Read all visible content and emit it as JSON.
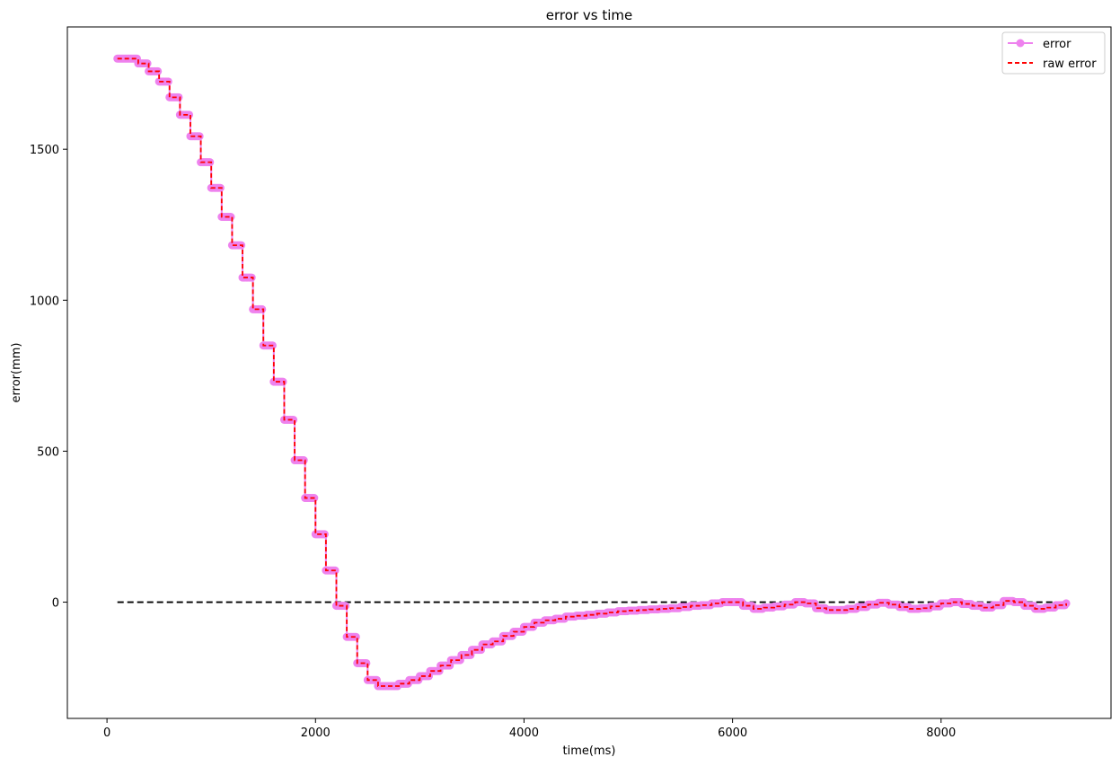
{
  "chart_data": {
    "type": "line",
    "title": "error vs time",
    "xlabel": "time(ms)",
    "ylabel": "error(mm)",
    "xlim": [
      -380,
      9630
    ],
    "ylim": [
      -385,
      1905
    ],
    "xticks": [
      0,
      2000,
      4000,
      6000,
      8000
    ],
    "yticks": [
      0,
      500,
      1000,
      1500
    ],
    "grid": false,
    "legend": "top-right",
    "reference_line": {
      "y": 0,
      "x_range": [
        100,
        9200
      ],
      "color": "#000000",
      "style": "dashed"
    },
    "series": [
      {
        "name": "error",
        "color": "#ee82ee",
        "style": "solid-step-with-markers",
        "points": [
          [
            100,
            1800
          ],
          [
            200,
            1800
          ],
          [
            300,
            1784
          ],
          [
            400,
            1758
          ],
          [
            500,
            1724
          ],
          [
            600,
            1672
          ],
          [
            700,
            1614
          ],
          [
            800,
            1543
          ],
          [
            900,
            1457
          ],
          [
            1000,
            1372
          ],
          [
            1100,
            1276
          ],
          [
            1200,
            1182
          ],
          [
            1300,
            1075
          ],
          [
            1400,
            970
          ],
          [
            1500,
            850
          ],
          [
            1600,
            730
          ],
          [
            1700,
            604
          ],
          [
            1800,
            470
          ],
          [
            1900,
            345
          ],
          [
            2000,
            225
          ],
          [
            2100,
            105
          ],
          [
            2200,
            -12
          ],
          [
            2300,
            -115
          ],
          [
            2400,
            -202
          ],
          [
            2500,
            -258
          ],
          [
            2600,
            -278
          ],
          [
            2700,
            -278
          ],
          [
            2800,
            -270
          ],
          [
            2900,
            -258
          ],
          [
            3000,
            -245
          ],
          [
            3100,
            -228
          ],
          [
            3200,
            -210
          ],
          [
            3300,
            -192
          ],
          [
            3400,
            -175
          ],
          [
            3500,
            -158
          ],
          [
            3600,
            -140
          ],
          [
            3700,
            -130
          ],
          [
            3800,
            -112
          ],
          [
            3900,
            -98
          ],
          [
            4000,
            -82
          ],
          [
            4100,
            -68
          ],
          [
            4200,
            -60
          ],
          [
            4300,
            -55
          ],
          [
            4400,
            -48
          ],
          [
            4500,
            -45
          ],
          [
            4600,
            -42
          ],
          [
            4700,
            -38
          ],
          [
            4800,
            -34
          ],
          [
            4900,
            -30
          ],
          [
            5000,
            -28
          ],
          [
            5100,
            -26
          ],
          [
            5200,
            -24
          ],
          [
            5300,
            -22
          ],
          [
            5400,
            -20
          ],
          [
            5500,
            -16
          ],
          [
            5600,
            -12
          ],
          [
            5700,
            -10
          ],
          [
            5800,
            -4
          ],
          [
            5900,
            0
          ],
          [
            6000,
            0
          ],
          [
            6100,
            -12
          ],
          [
            6200,
            -22
          ],
          [
            6300,
            -18
          ],
          [
            6400,
            -14
          ],
          [
            6500,
            -8
          ],
          [
            6600,
            0
          ],
          [
            6700,
            -4
          ],
          [
            6800,
            -20
          ],
          [
            6900,
            -26
          ],
          [
            7000,
            -26
          ],
          [
            7100,
            -22
          ],
          [
            7200,
            -16
          ],
          [
            7300,
            -8
          ],
          [
            7400,
            -2
          ],
          [
            7500,
            -8
          ],
          [
            7600,
            -16
          ],
          [
            7700,
            -22
          ],
          [
            7800,
            -20
          ],
          [
            7900,
            -14
          ],
          [
            8000,
            -4
          ],
          [
            8100,
            0
          ],
          [
            8200,
            -6
          ],
          [
            8300,
            -12
          ],
          [
            8400,
            -18
          ],
          [
            8500,
            -10
          ],
          [
            8600,
            4
          ],
          [
            8700,
            0
          ],
          [
            8800,
            -12
          ],
          [
            8900,
            -22
          ],
          [
            9000,
            -18
          ],
          [
            9100,
            -10
          ],
          [
            9200,
            -4
          ]
        ]
      },
      {
        "name": "raw error",
        "color": "#ff0000",
        "style": "dashed-step",
        "points": [
          [
            100,
            1800
          ],
          [
            200,
            1800
          ],
          [
            300,
            1784
          ],
          [
            400,
            1758
          ],
          [
            500,
            1724
          ],
          [
            600,
            1672
          ],
          [
            700,
            1614
          ],
          [
            800,
            1543
          ],
          [
            900,
            1457
          ],
          [
            1000,
            1372
          ],
          [
            1100,
            1276
          ],
          [
            1200,
            1182
          ],
          [
            1300,
            1075
          ],
          [
            1400,
            970
          ],
          [
            1500,
            850
          ],
          [
            1600,
            730
          ],
          [
            1700,
            604
          ],
          [
            1800,
            470
          ],
          [
            1900,
            345
          ],
          [
            2000,
            225
          ],
          [
            2100,
            105
          ],
          [
            2200,
            -12
          ],
          [
            2300,
            -115
          ],
          [
            2400,
            -202
          ],
          [
            2500,
            -258
          ],
          [
            2600,
            -278
          ],
          [
            2700,
            -278
          ],
          [
            2800,
            -270
          ],
          [
            2900,
            -258
          ],
          [
            3000,
            -245
          ],
          [
            3100,
            -228
          ],
          [
            3200,
            -210
          ],
          [
            3300,
            -192
          ],
          [
            3400,
            -175
          ],
          [
            3500,
            -158
          ],
          [
            3600,
            -140
          ],
          [
            3700,
            -130
          ],
          [
            3800,
            -112
          ],
          [
            3900,
            -98
          ],
          [
            4000,
            -82
          ],
          [
            4100,
            -68
          ],
          [
            4200,
            -60
          ],
          [
            4300,
            -55
          ],
          [
            4400,
            -48
          ],
          [
            4500,
            -45
          ],
          [
            4600,
            -42
          ],
          [
            4700,
            -38
          ],
          [
            4800,
            -34
          ],
          [
            4900,
            -30
          ],
          [
            5000,
            -28
          ],
          [
            5100,
            -26
          ],
          [
            5200,
            -24
          ],
          [
            5300,
            -22
          ],
          [
            5400,
            -20
          ],
          [
            5500,
            -16
          ],
          [
            5600,
            -12
          ],
          [
            5700,
            -10
          ],
          [
            5800,
            -4
          ],
          [
            5900,
            0
          ],
          [
            6000,
            0
          ],
          [
            6100,
            -12
          ],
          [
            6200,
            -22
          ],
          [
            6300,
            -18
          ],
          [
            6400,
            -14
          ],
          [
            6500,
            -8
          ],
          [
            6600,
            0
          ],
          [
            6700,
            -4
          ],
          [
            6800,
            -20
          ],
          [
            6900,
            -26
          ],
          [
            7000,
            -26
          ],
          [
            7100,
            -22
          ],
          [
            7200,
            -16
          ],
          [
            7300,
            -8
          ],
          [
            7400,
            -2
          ],
          [
            7500,
            -8
          ],
          [
            7600,
            -16
          ],
          [
            7700,
            -22
          ],
          [
            7800,
            -20
          ],
          [
            7900,
            -14
          ],
          [
            8000,
            -4
          ],
          [
            8100,
            0
          ],
          [
            8200,
            -6
          ],
          [
            8300,
            -12
          ],
          [
            8400,
            -18
          ],
          [
            8500,
            -10
          ],
          [
            8600,
            4
          ],
          [
            8700,
            0
          ],
          [
            8800,
            -12
          ],
          [
            8900,
            -22
          ],
          [
            9000,
            -18
          ],
          [
            9100,
            -10
          ],
          [
            9200,
            -4
          ]
        ]
      }
    ]
  }
}
